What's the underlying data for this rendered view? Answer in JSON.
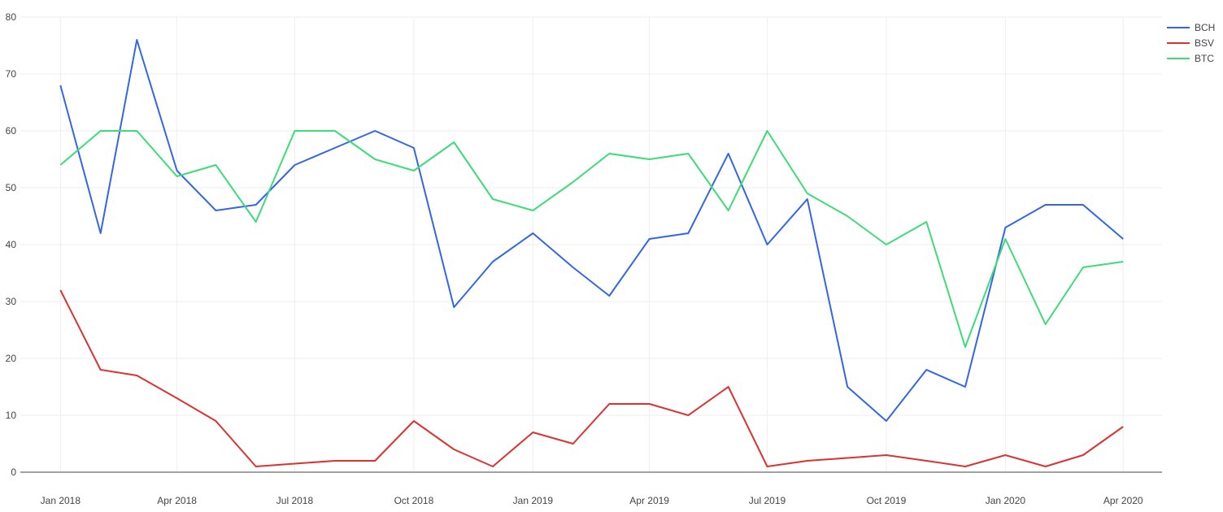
{
  "chart_data": {
    "type": "line",
    "title": "",
    "xlabel": "",
    "ylabel": "",
    "ylim": [
      0,
      80
    ],
    "y_ticks": [
      0,
      10,
      20,
      30,
      40,
      50,
      60,
      70,
      80
    ],
    "x_range": [
      "2017-12-01",
      "2020-05-01"
    ],
    "x_ticks": [
      {
        "label": "Jan 2018",
        "date": "2018-01-01"
      },
      {
        "label": "Apr 2018",
        "date": "2018-04-01"
      },
      {
        "label": "Jul 2018",
        "date": "2018-07-01"
      },
      {
        "label": "Oct 2018",
        "date": "2018-10-01"
      },
      {
        "label": "Jan 2019",
        "date": "2019-01-01"
      },
      {
        "label": "Apr 2019",
        "date": "2019-04-01"
      },
      {
        "label": "Jul 2019",
        "date": "2019-07-01"
      },
      {
        "label": "Oct 2019",
        "date": "2019-10-01"
      },
      {
        "label": "Jan 2020",
        "date": "2020-01-01"
      },
      {
        "label": "Apr 2020",
        "date": "2020-04-01"
      }
    ],
    "x": [
      "2018-01-01",
      "2018-02-01",
      "2018-03-01",
      "2018-04-01",
      "2018-05-01",
      "2018-06-01",
      "2018-07-01",
      "2018-08-01",
      "2018-09-01",
      "2018-10-01",
      "2018-11-01",
      "2018-12-01",
      "2019-01-01",
      "2019-02-01",
      "2019-03-01",
      "2019-04-01",
      "2019-05-01",
      "2019-06-01",
      "2019-07-01",
      "2019-08-01",
      "2019-09-01",
      "2019-10-01",
      "2019-11-01",
      "2019-12-01",
      "2020-01-01",
      "2020-02-01",
      "2020-03-01",
      "2020-04-01"
    ],
    "series": [
      {
        "name": "BCH",
        "color": "#3366e6",
        "values": [
          68,
          42,
          76,
          53,
          46,
          47,
          54,
          57,
          60,
          57,
          29,
          37,
          42,
          36,
          31,
          41,
          42,
          56,
          40,
          48,
          15,
          9,
          18,
          15,
          43,
          47,
          47,
          41
        ]
      },
      {
        "name": "BSV",
        "color": "#dc3232",
        "values": [
          32,
          18,
          17,
          13,
          9,
          1,
          1.5,
          2,
          2,
          9,
          4,
          1,
          7,
          5,
          12,
          12,
          10,
          15,
          1,
          2,
          2.5,
          3,
          2,
          1,
          3,
          1,
          3,
          8
        ]
      },
      {
        "name": "BTC",
        "color": "#3cdc78",
        "values": [
          54,
          60,
          60,
          52,
          54,
          44,
          60,
          60,
          55,
          53,
          58,
          48,
          46,
          51,
          56,
          55,
          56,
          46,
          60,
          49,
          45,
          40,
          44,
          22,
          41,
          26,
          36,
          37
        ]
      }
    ],
    "grid": true,
    "legend_position": "top-right"
  },
  "colors": {
    "grid": "#eeeeee",
    "zero_line": "#444444",
    "text": "#444444",
    "background": "#ffffff"
  }
}
